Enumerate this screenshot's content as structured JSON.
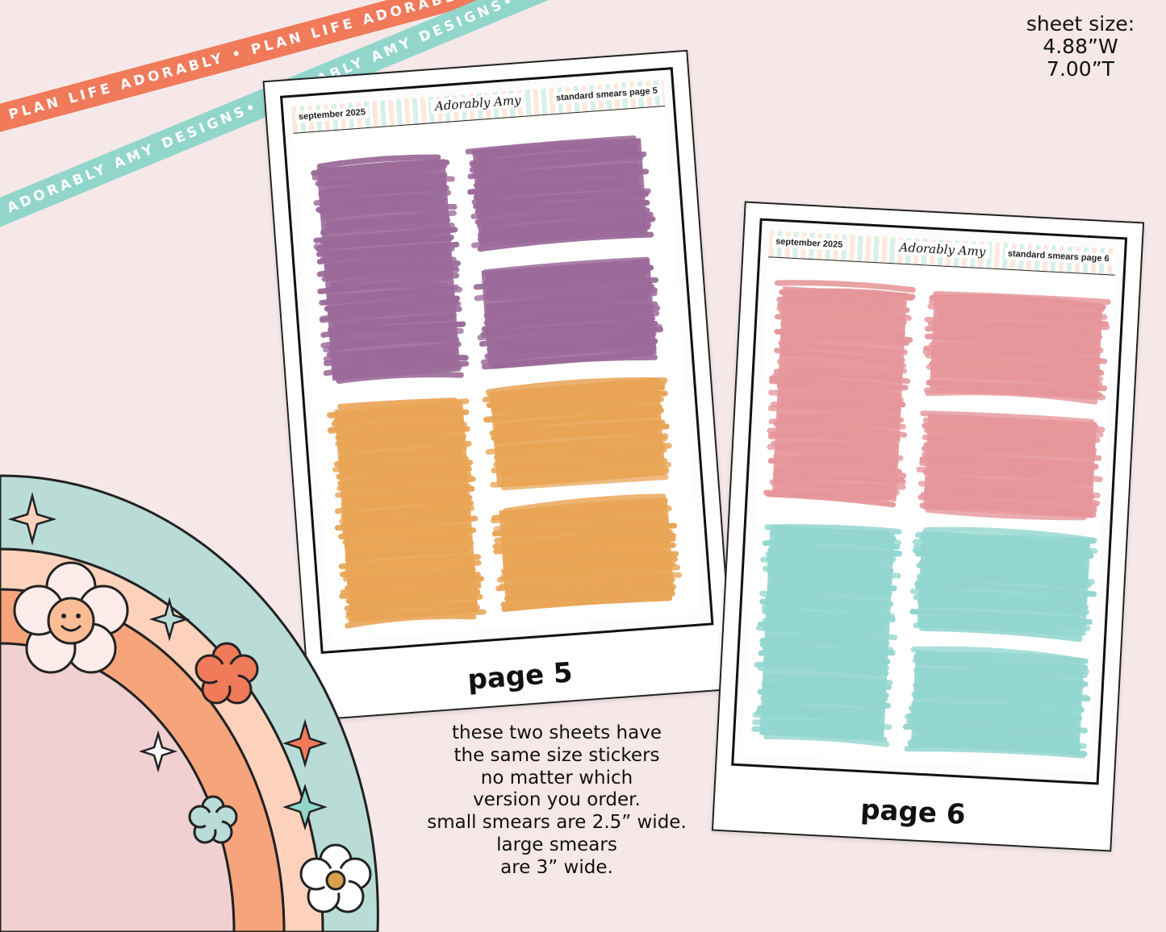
{
  "ribbons": [
    {
      "text": "PLAN LIFE ADORABLY • PLAN LIFE ADORABLY • PLAN LIFE ADORABLY •",
      "color": "#f07a5a"
    },
    {
      "text": "ADORABLY AMY DESIGNS• ADORABLY AMY DESIGNS• ADORABLY AMY DESIGNS•",
      "color": "#92d6cb"
    }
  ],
  "sheet_size": {
    "label": "sheet size:",
    "width": "4.88”W",
    "height": "7.00”T"
  },
  "sheets": [
    {
      "caption": "page 5",
      "header_left": "september 2025",
      "header_brand": "Adorably Amy",
      "header_right": "standard smears page 5",
      "colors": [
        "#9b6a99",
        "#e9a455"
      ]
    },
    {
      "caption": "page 6",
      "header_left": "september 2025",
      "header_brand": "Adorably Amy",
      "header_right": "standard smears page 6",
      "colors": [
        "#e6969a",
        "#92d6cf"
      ]
    }
  ],
  "note_lines": [
    "these two sheets have",
    "the same size stickers",
    "no matter which",
    "version you order.",
    "small smears are 2.5” wide.",
    "large smears",
    "are 3” wide."
  ],
  "rainbow_colors": [
    "#b9dcd7",
    "#fcd2bc",
    "#f6a47b",
    "#f0d0d0"
  ]
}
